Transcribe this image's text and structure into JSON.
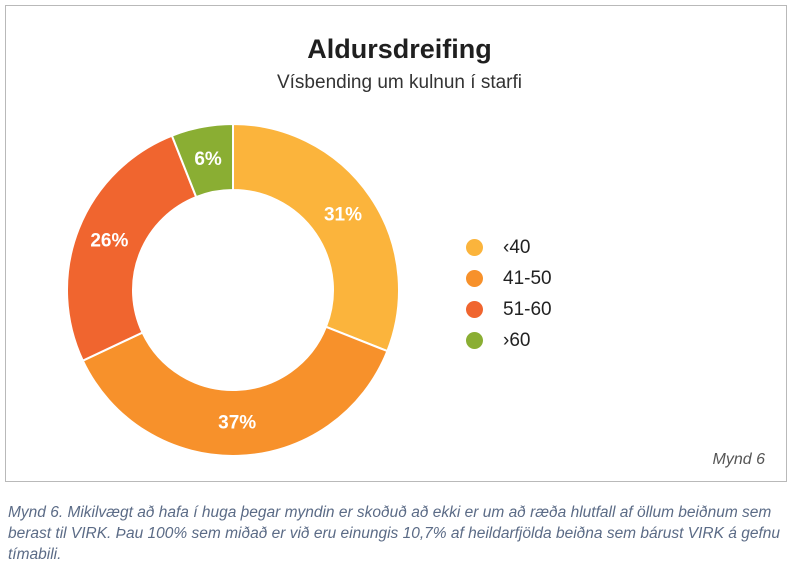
{
  "chart_data": {
    "type": "pie",
    "title": "Aldursdreifing",
    "subtitle": "Vísbending um kulnun í starfi",
    "donut": true,
    "categories": [
      "‹40",
      "41-50",
      "51-60",
      "›60"
    ],
    "values": [
      31,
      37,
      26,
      6
    ],
    "data_labels": [
      "31%",
      "37%",
      "26%",
      "6%"
    ],
    "colors": [
      "#FBB43C",
      "#F7912B",
      "#F0652F",
      "#8AAE33"
    ],
    "legend_position": "right"
  },
  "figure_tag": "Mynd 6",
  "caption": "Mynd 6. Mikilvægt að hafa í huga þegar myndin er skoðuð að ekki er um að ræða hlutfall af öllum beiðnum sem berast til VIRK. Þau 100% sem miðað er við eru einungis 10,7% af heildarfjölda beiðna sem bárust VIRK á gefnu tímabili."
}
